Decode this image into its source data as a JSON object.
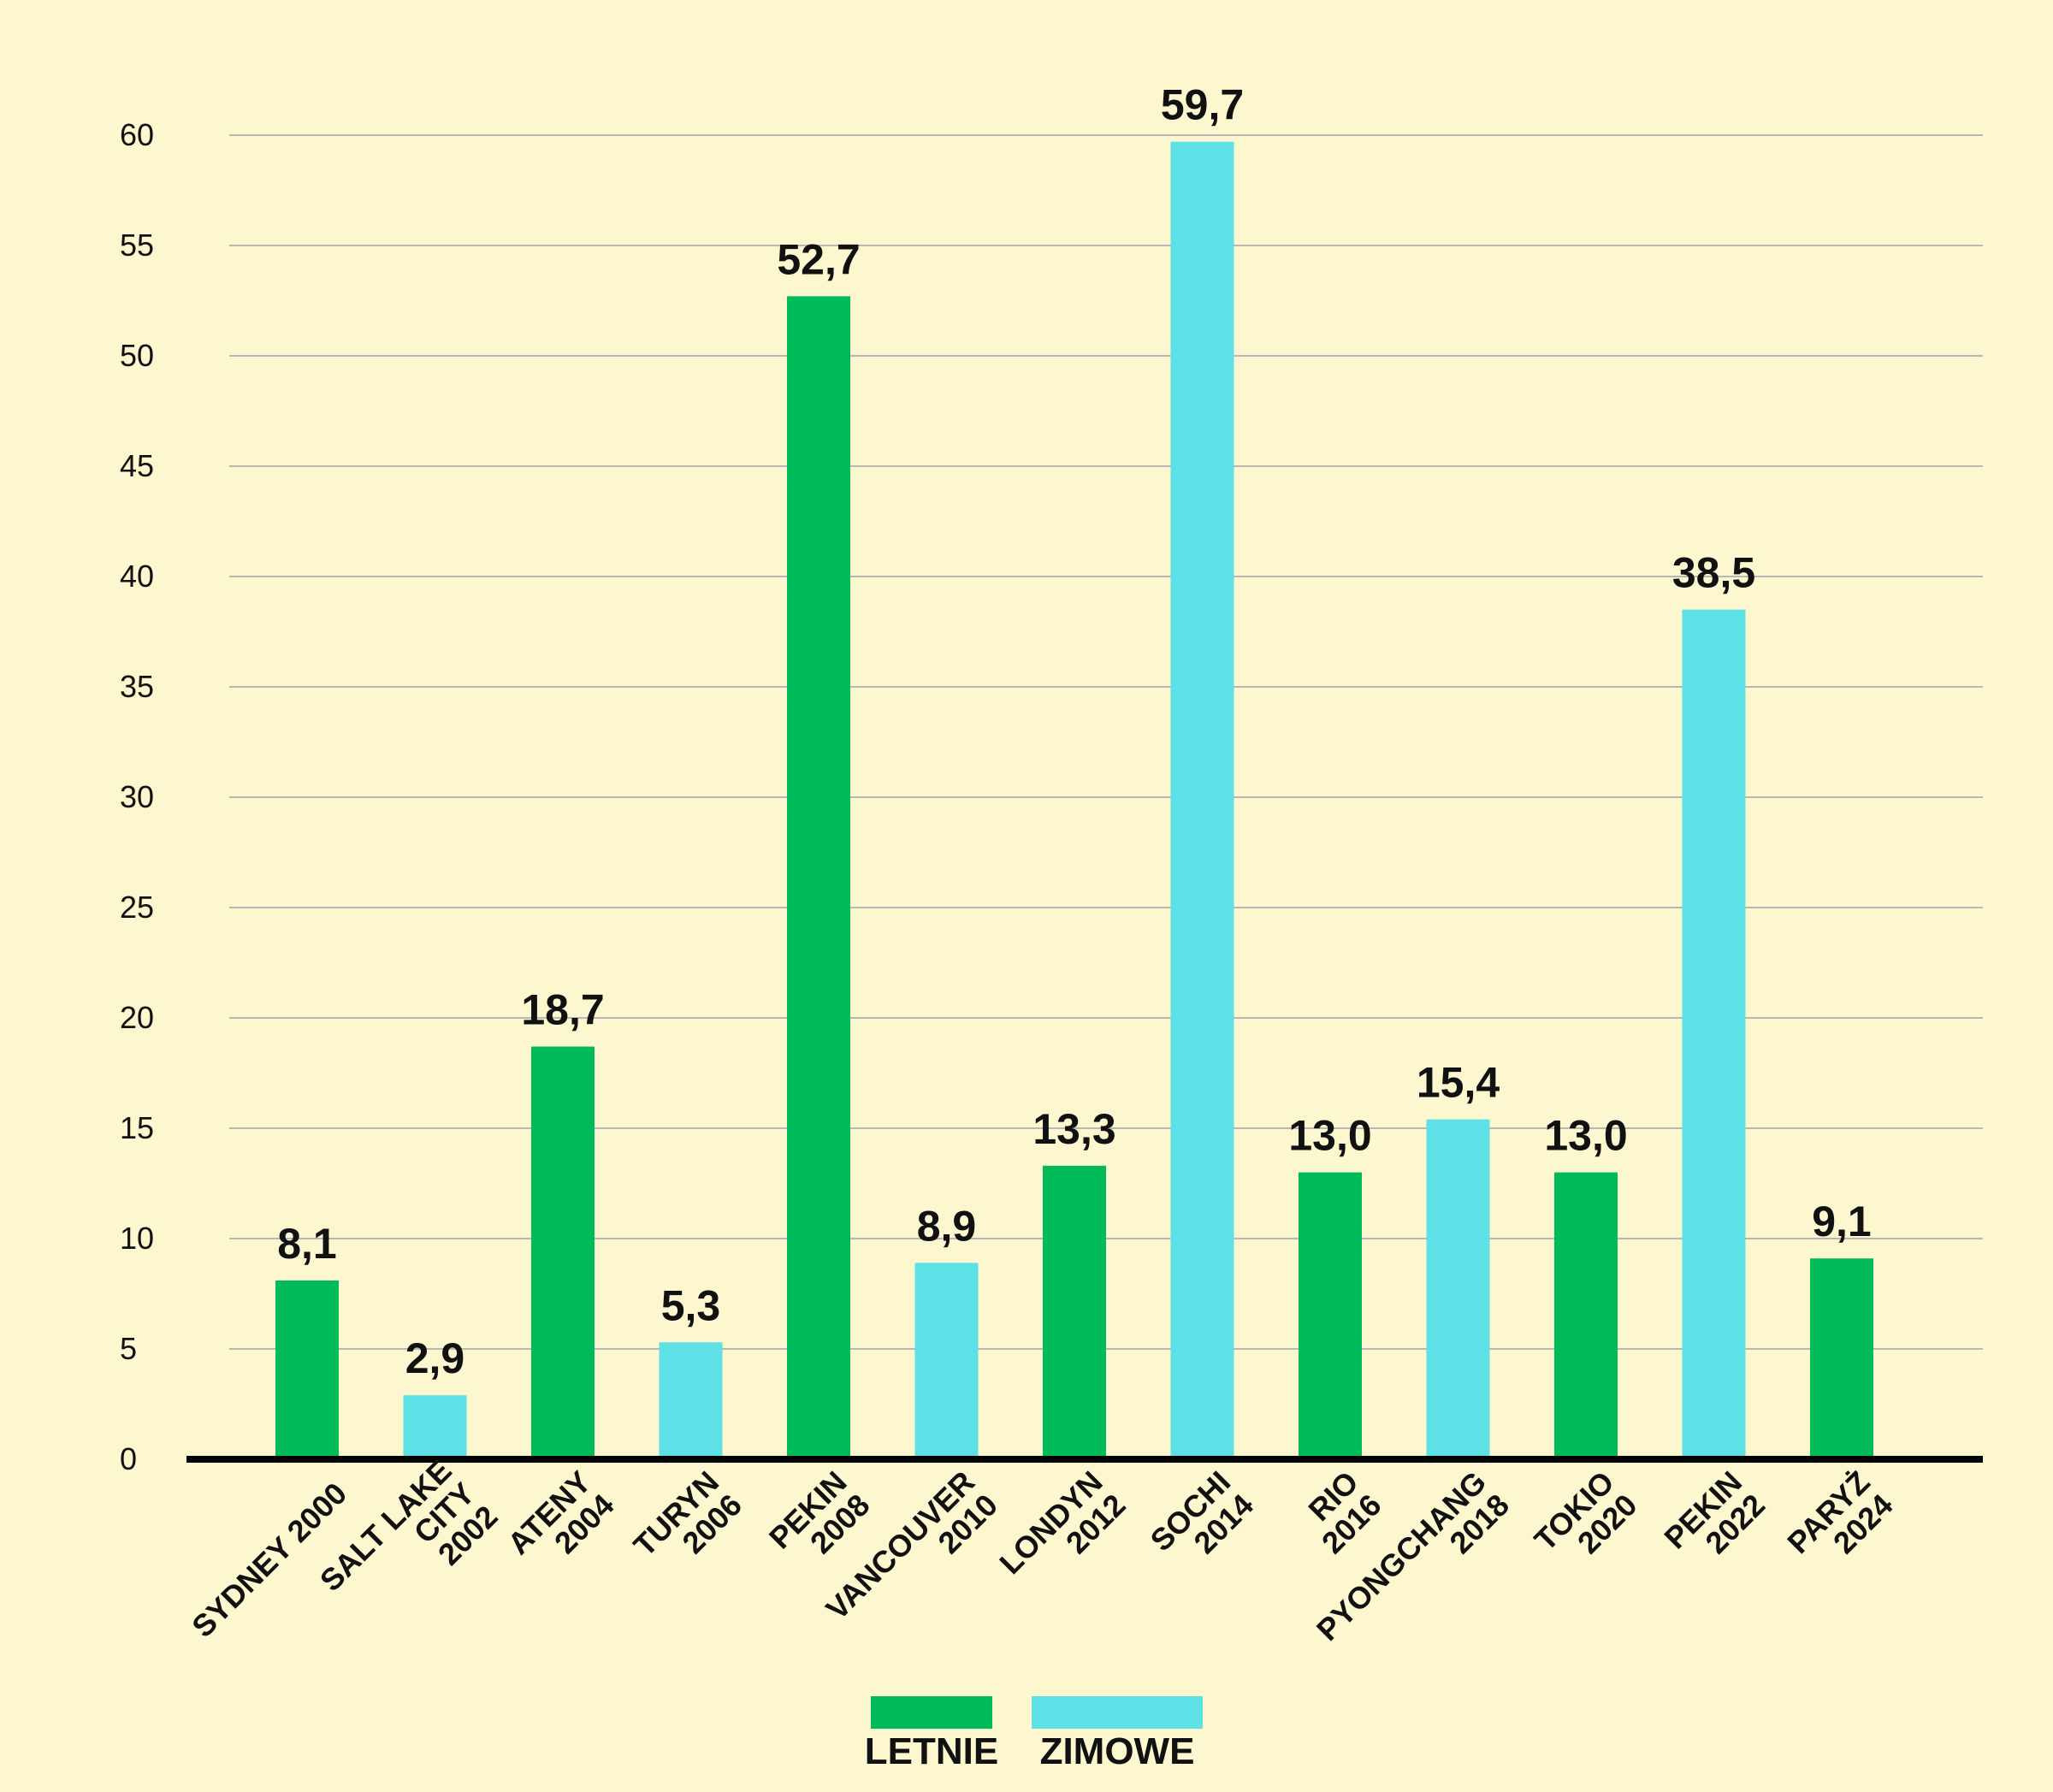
{
  "chart_data": {
    "type": "bar",
    "title": "",
    "xlabel": "",
    "ylabel": "",
    "ylim": [
      0,
      60
    ],
    "yticks": [
      0,
      5,
      10,
      15,
      20,
      25,
      30,
      35,
      40,
      45,
      50,
      55,
      60
    ],
    "grid": true,
    "legend_position": "bottom",
    "categories": [
      [
        "SYDNEY 2000"
      ],
      [
        "SALT LAKE",
        "CITY",
        "2002"
      ],
      [
        "ATENY",
        "2004"
      ],
      [
        "TURYN",
        "2006"
      ],
      [
        "PEKIN",
        "2008"
      ],
      [
        "VANCOUVER",
        "2010"
      ],
      [
        "LONDYN",
        "2012"
      ],
      [
        "SOCHI",
        "2014"
      ],
      [
        "RIO",
        "2016"
      ],
      [
        "PYONGCHANG",
        "2018"
      ],
      [
        "TOKIO",
        "2020"
      ],
      [
        "PEKIN",
        "2022"
      ],
      [
        "PARYŻ",
        "2024"
      ]
    ],
    "values": [
      8.1,
      2.9,
      18.7,
      5.3,
      52.7,
      8.9,
      13.3,
      59.7,
      13.0,
      15.4,
      13.0,
      38.5,
      9.1
    ],
    "value_labels": [
      "8,1",
      "2,9",
      "18,7",
      "5,3",
      "52,7",
      "8,9",
      "13,3",
      "59,7",
      "13,0",
      "15,4",
      "13,0",
      "38,5",
      "9,1"
    ],
    "series_of_bar": [
      "letnie",
      "zimowe",
      "letnie",
      "zimowe",
      "letnie",
      "zimowe",
      "letnie",
      "zimowe",
      "letnie",
      "zimowe",
      "letnie",
      "zimowe",
      "letnie"
    ],
    "legend": [
      {
        "key": "letnie",
        "label": "LETNIE",
        "color": "#00bb5a"
      },
      {
        "key": "zimowe",
        "label": "ZIMOWE",
        "color": "#5de0e6"
      }
    ],
    "colors": {
      "background": "#fdf7cf",
      "grid": "#b7b7b7",
      "axis": "#000000",
      "text": "#111111"
    }
  }
}
